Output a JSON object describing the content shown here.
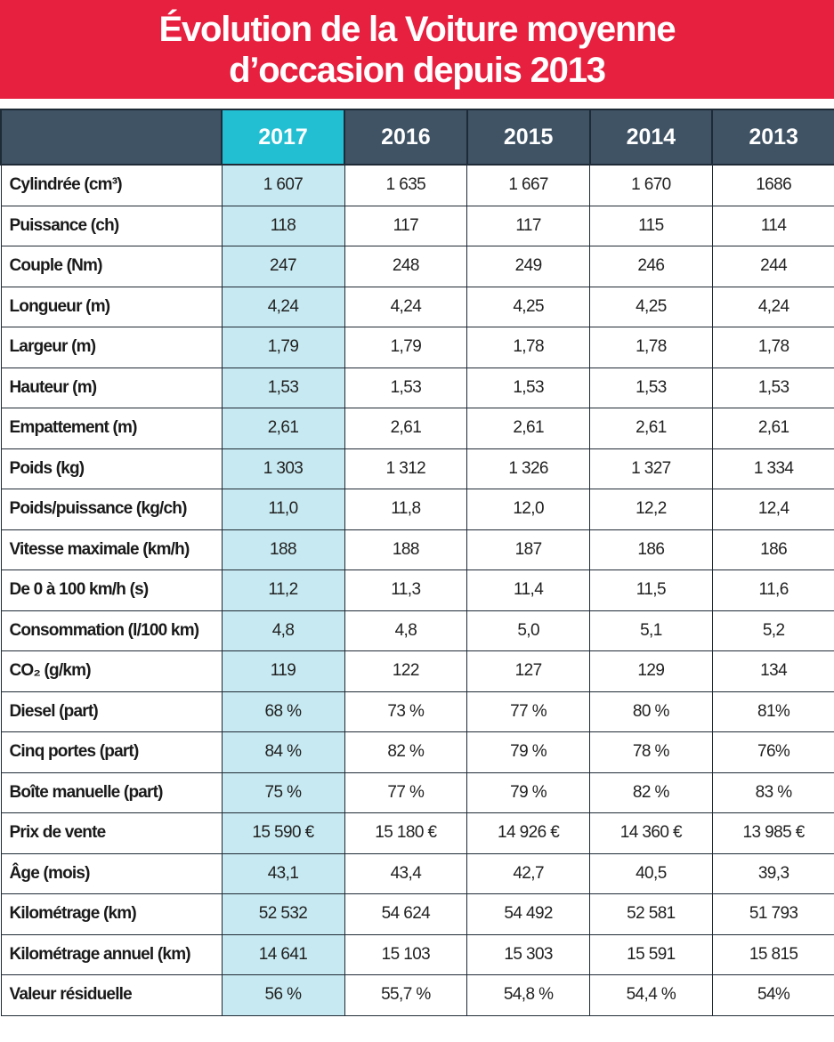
{
  "title": {
    "line1": "Évolution de la Voiture moyenne",
    "line2": "d’occasion depuis 2013"
  },
  "colors": {
    "banner": "#e8203f",
    "header": "#3f5365",
    "highlight_header": "#22bfd3",
    "highlight_column": "#c7e9f1"
  },
  "table": {
    "columns": [
      "",
      "2017",
      "2016",
      "2015",
      "2014",
      "2013"
    ],
    "rows": [
      {
        "label": "Cylindrée (cm³)",
        "values": [
          "1 607",
          "1 635",
          "1 667",
          "1 670",
          "1686"
        ]
      },
      {
        "label": "Puissance (ch)",
        "values": [
          "118",
          "117",
          "117",
          "115",
          "114"
        ]
      },
      {
        "label": "Couple (Nm)",
        "values": [
          "247",
          "248",
          "249",
          "246",
          "244"
        ]
      },
      {
        "label": "Longueur (m)",
        "values": [
          "4,24",
          "4,24",
          "4,25",
          "4,25",
          "4,24"
        ]
      },
      {
        "label": "Largeur (m)",
        "values": [
          "1,79",
          "1,79",
          "1,78",
          "1,78",
          "1,78"
        ]
      },
      {
        "label": "Hauteur (m)",
        "values": [
          "1,53",
          "1,53",
          "1,53",
          "1,53",
          "1,53"
        ]
      },
      {
        "label": "Empattement (m)",
        "values": [
          "2,61",
          "2,61",
          "2,61",
          "2,61",
          "2,61"
        ]
      },
      {
        "label": "Poids (kg)",
        "values": [
          "1 303",
          "1 312",
          "1 326",
          "1 327",
          "1 334"
        ]
      },
      {
        "label": "Poids/puissance (kg/ch)",
        "values": [
          "11,0",
          "11,8",
          "12,0",
          "12,2",
          "12,4"
        ]
      },
      {
        "label": "Vitesse maximale (km/h)",
        "values": [
          "188",
          "188",
          "187",
          "186",
          "186"
        ]
      },
      {
        "label": "De 0 à 100 km/h (s)",
        "values": [
          "11,2",
          "11,3",
          "11,4",
          "11,5",
          "11,6"
        ]
      },
      {
        "label": "Consommation (l/100 km)",
        "values": [
          "4,8",
          "4,8",
          "5,0",
          "5,1",
          "5,2"
        ]
      },
      {
        "label": "CO₂ (g/km)",
        "values": [
          "119",
          "122",
          "127",
          "129",
          "134"
        ]
      },
      {
        "label": "Diesel (part)",
        "values": [
          "68 %",
          "73 %",
          "77 %",
          "80 %",
          "81%"
        ]
      },
      {
        "label": "Cinq portes (part)",
        "values": [
          "84 %",
          "82 %",
          "79 %",
          "78 %",
          "76%"
        ]
      },
      {
        "label": "Boîte manuelle (part)",
        "values": [
          "75 %",
          "77 %",
          "79 %",
          "82 %",
          "83 %"
        ]
      },
      {
        "label": "Prix de vente",
        "values": [
          "15 590 €",
          "15 180 €",
          "14 926 €",
          "14 360 €",
          "13 985 €"
        ]
      },
      {
        "label": "Âge (mois)",
        "values": [
          "43,1",
          "43,4",
          "42,7",
          "40,5",
          "39,3"
        ]
      },
      {
        "label": "Kilométrage (km)",
        "values": [
          "52 532",
          "54 624",
          "54 492",
          "52 581",
          "51 793"
        ]
      },
      {
        "label": "Kilométrage annuel (km)",
        "values": [
          "14 641",
          "15 103",
          "15 303",
          "15 591",
          "15 815"
        ]
      },
      {
        "label": "Valeur résiduelle",
        "values": [
          "56 %",
          "55,7 %",
          "54,8 %",
          "54,4 %",
          "54%"
        ]
      }
    ]
  }
}
